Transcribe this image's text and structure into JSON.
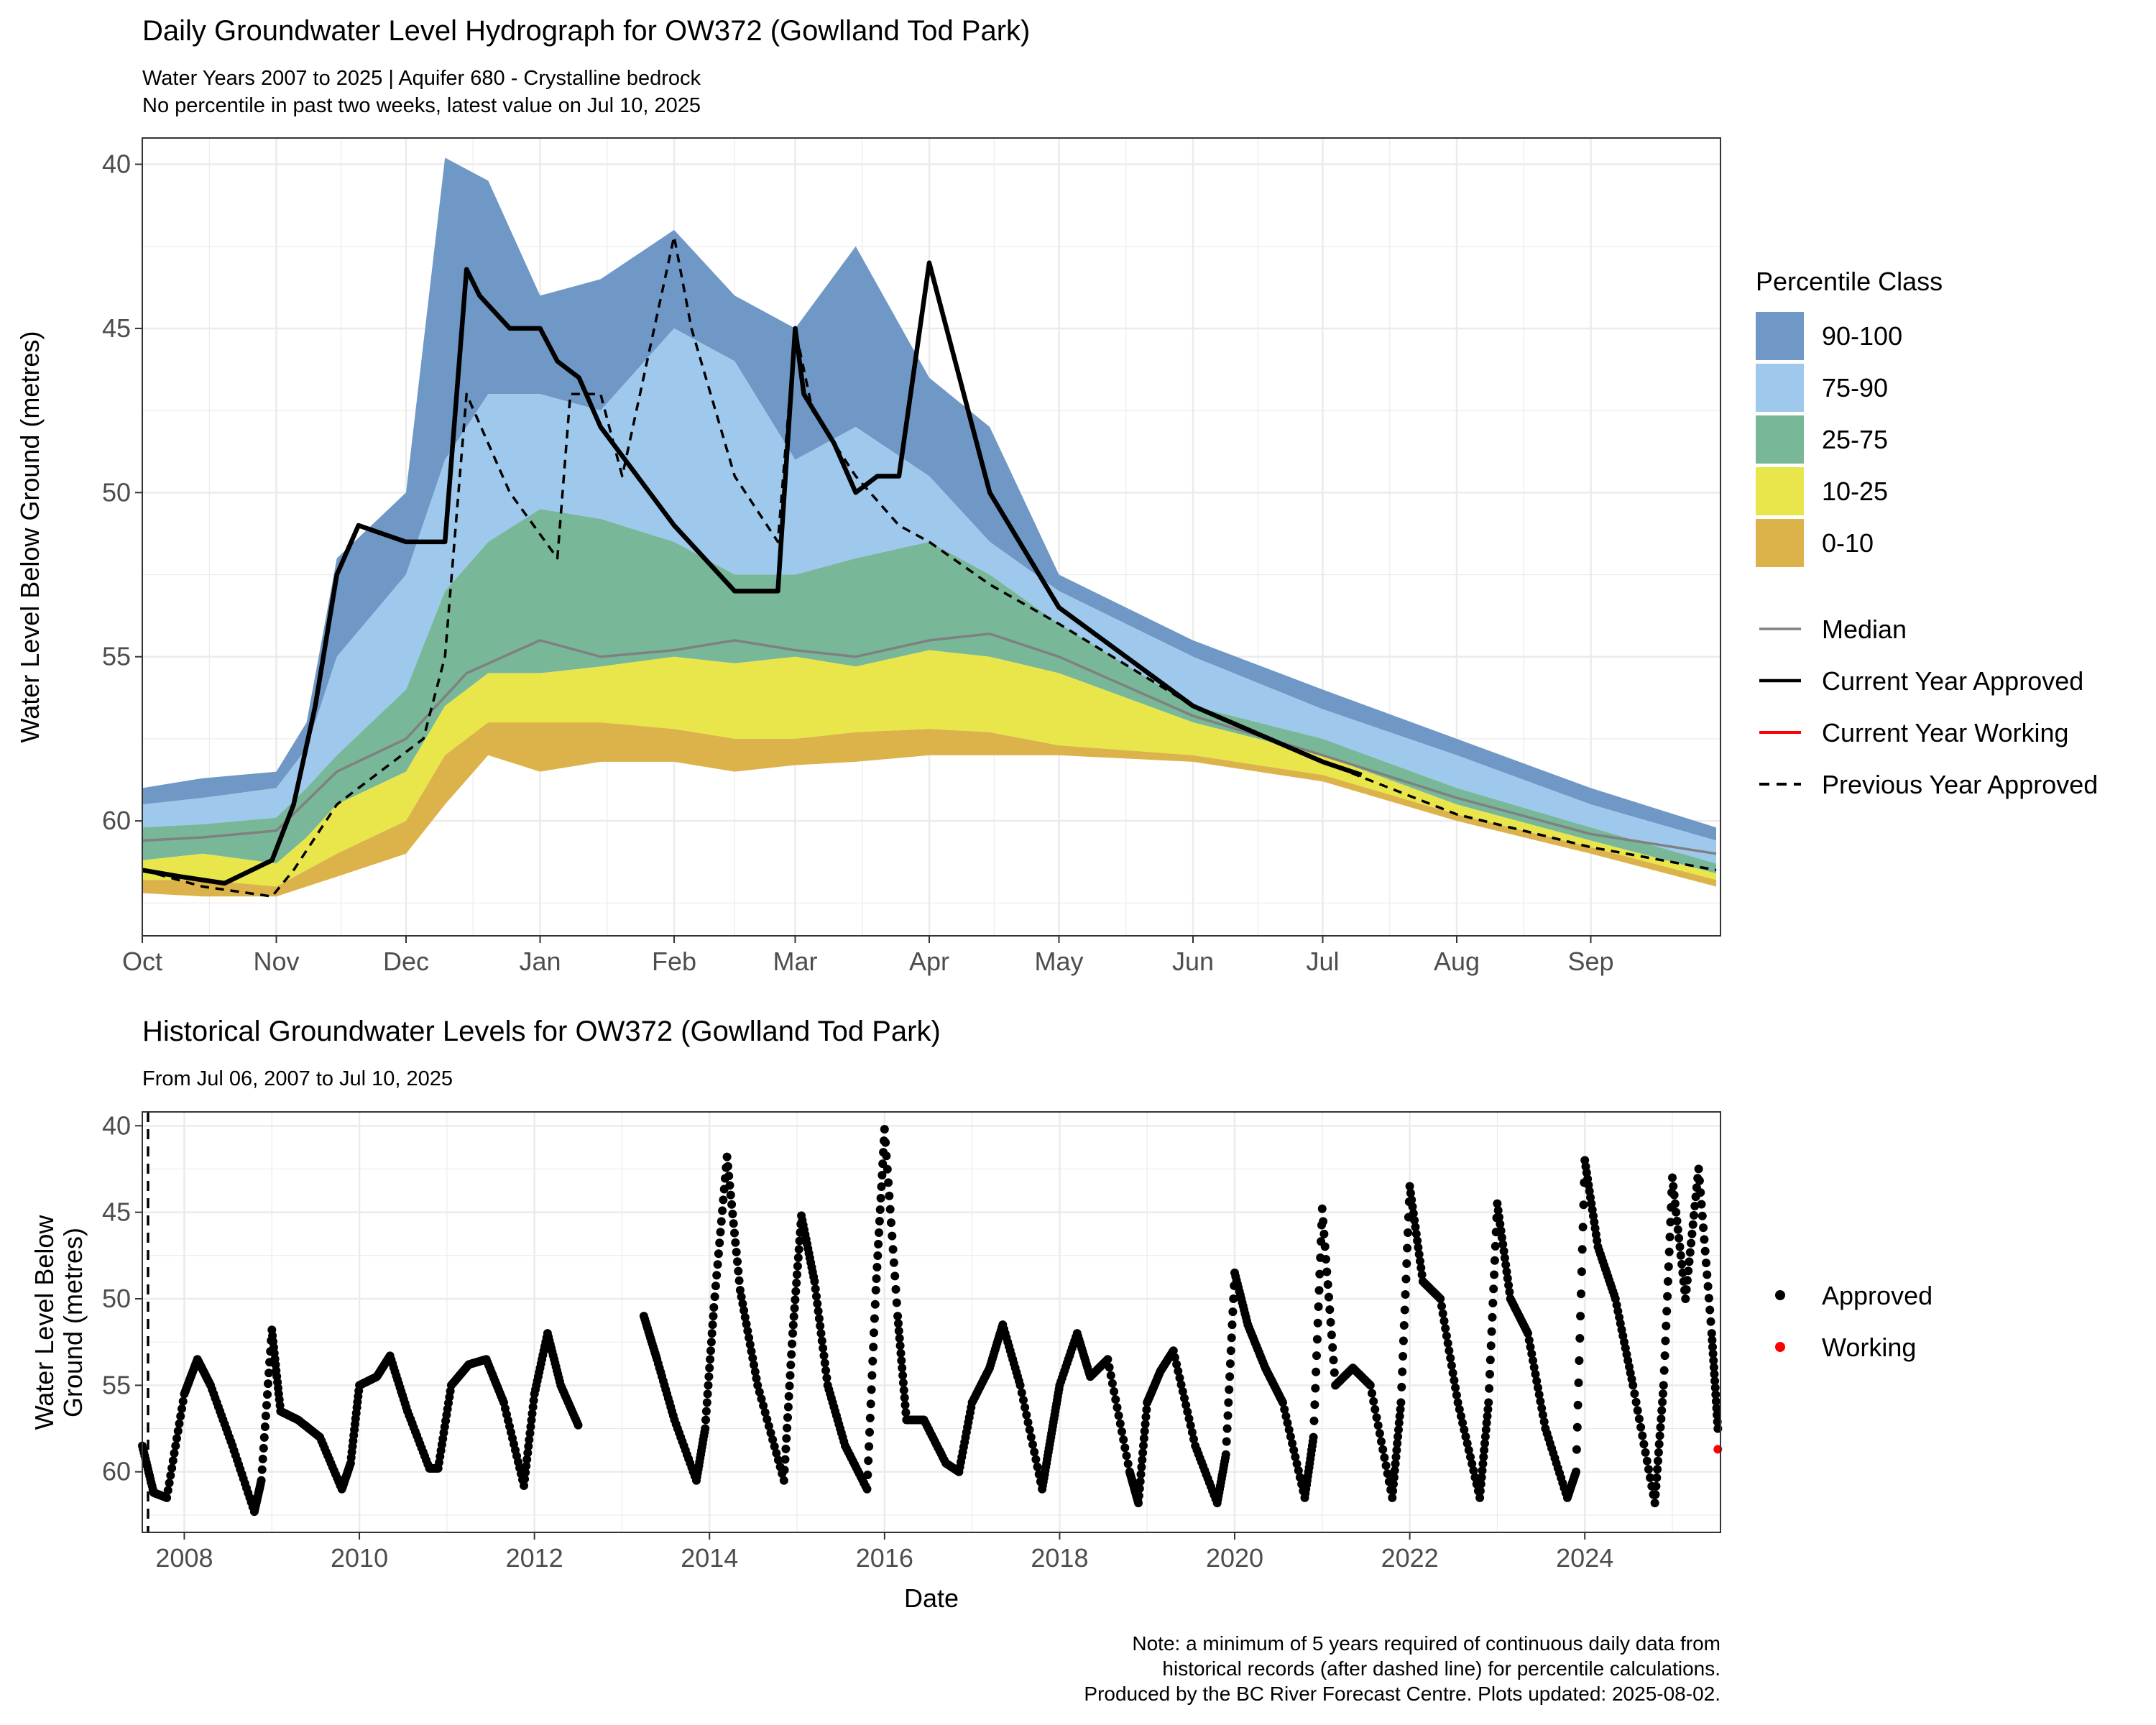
{
  "colors": {
    "p90_100": "#6f98c7",
    "p75_90": "#9fc9ec",
    "p25_75": "#78b899",
    "p10_25": "#e9e64c",
    "p0_10": "#dcb24a",
    "median": "#808080",
    "current_approved": "#000000",
    "current_working": "#ff0000",
    "previous_approved": "#000000",
    "approved_points": "#000000",
    "working_points": "#ff0000",
    "grid": "#ebebeb"
  },
  "titles": {
    "main": "Daily Groundwater Level Hydrograph for OW372 (Gowlland Tod Park)",
    "sub1": "Water Years 2007 to 2025 | Aquifer 680 - Crystalline bedrock",
    "sub2": "No percentile in past two weeks, latest value on Jul 10, 2025",
    "hist": "Historical Groundwater Levels for OW372 (Gowlland Tod Park)",
    "hist_sub": "From Jul 06, 2007 to Jul 10, 2025"
  },
  "legend1": {
    "title": "Percentile Class",
    "classes": [
      "90-100",
      "75-90",
      "25-75",
      "10-25",
      "0-10"
    ],
    "lines": [
      "Median",
      "Current Year Approved",
      "Current Year Working",
      "Previous Year Approved"
    ]
  },
  "legend2": {
    "items": [
      "Approved",
      "Working"
    ]
  },
  "notes": [
    "Note: a minimum of 5 years required of continuous daily data from",
    "historical records (after dashed line) for percentile calculations.",
    "Produced by the BC River Forecast Centre. Plots updated: 2025-08-02."
  ],
  "chart_data": [
    {
      "type": "area",
      "title": "Daily Groundwater Level Hydrograph for OW372 (Gowlland Tod Park)",
      "xlabel": "",
      "ylabel": "Water Level Below Ground (metres)",
      "y_reversed": true,
      "ylim": [
        63.5,
        39.2
      ],
      "x_ticks": [
        "Oct",
        "Nov",
        "Dec",
        "Jan",
        "Feb",
        "Mar",
        "Apr",
        "May",
        "Jun",
        "Jul",
        "Aug",
        "Sep"
      ],
      "y_ticks": [
        40,
        45,
        50,
        55,
        60
      ],
      "grid": true,
      "legend_position": "right",
      "x": [
        "Oct 1",
        "Oct 15",
        "Nov 1",
        "Nov 8",
        "Nov 15",
        "Dec 1",
        "Dec 10",
        "Dec 20",
        "Jan 1",
        "Jan 15",
        "Feb 1",
        "Feb 15",
        "Mar 1",
        "Mar 15",
        "Apr 1",
        "Apr 15",
        "May 1",
        "Jun 1",
        "Jul 1",
        "Aug 1",
        "Sep 1",
        "Sep 30"
      ],
      "bands": [
        {
          "name": "90-100",
          "top": [
            59.0,
            58.7,
            58.5,
            57.0,
            52.0,
            50.0,
            39.8,
            40.5,
            44.0,
            43.5,
            42.0,
            44.0,
            45.0,
            42.5,
            46.5,
            48.0,
            52.5,
            54.5,
            56.0,
            57.5,
            59.0,
            60.2
          ]
        },
        {
          "name": "75-90",
          "top": [
            59.5,
            59.3,
            59.0,
            57.8,
            55.0,
            52.5,
            49.0,
            47.0,
            47.0,
            47.5,
            45.0,
            46.0,
            49.0,
            48.0,
            49.5,
            51.5,
            53.0,
            55.0,
            56.6,
            58.0,
            59.5,
            60.6
          ]
        },
        {
          "name": "25-75",
          "top": [
            60.2,
            60.1,
            59.9,
            59.0,
            58.0,
            56.0,
            53.0,
            51.5,
            50.5,
            50.8,
            51.5,
            52.5,
            52.5,
            52.0,
            51.5,
            52.5,
            54.0,
            56.5,
            57.5,
            59.0,
            60.2,
            61.3
          ]
        },
        {
          "name": "10-25",
          "top": [
            61.2,
            61.0,
            61.3,
            60.5,
            59.5,
            58.5,
            56.5,
            55.5,
            55.5,
            55.3,
            55.0,
            55.2,
            55.0,
            55.3,
            54.8,
            55.0,
            55.5,
            57.0,
            58.0,
            59.5,
            60.6,
            61.6
          ]
        },
        {
          "name": "0-10",
          "top": [
            61.8,
            61.8,
            62.0,
            61.5,
            61.0,
            60.0,
            58.0,
            57.0,
            57.0,
            57.0,
            57.2,
            57.5,
            57.5,
            57.3,
            57.2,
            57.3,
            57.7,
            58.0,
            58.6,
            59.8,
            60.8,
            61.8
          ]
        }
      ],
      "bottom": [
        62.2,
        62.3,
        62.3,
        62.0,
        61.7,
        61.0,
        59.5,
        58.0,
        58.5,
        58.2,
        58.2,
        58.5,
        58.3,
        58.2,
        58.0,
        58.0,
        58.0,
        58.2,
        58.8,
        60.0,
        61.0,
        62.0
      ],
      "series": [
        {
          "name": "Median",
          "x": [
            "Oct 1",
            "Oct 15",
            "Nov 1",
            "Nov 15",
            "Dec 1",
            "Dec 15",
            "Jan 1",
            "Jan 15",
            "Feb 1",
            "Feb 15",
            "Mar 1",
            "Mar 15",
            "Apr 1",
            "Apr 15",
            "May 1",
            "Jun 1",
            "Jul 1",
            "Aug 1",
            "Sep 1",
            "Sep 30"
          ],
          "values": [
            60.6,
            60.5,
            60.3,
            58.5,
            57.5,
            55.5,
            54.5,
            55.0,
            54.8,
            54.5,
            54.8,
            55.0,
            54.5,
            54.3,
            55.0,
            56.8,
            58.0,
            59.3,
            60.4,
            61.0
          ]
        },
        {
          "name": "Current Year Approved",
          "x": [
            "Oct 1",
            "Oct 10",
            "Oct 20",
            "Oct 31",
            "Nov 5",
            "Nov 10",
            "Nov 15",
            "Nov 20",
            "Dec 1",
            "Dec 10",
            "Dec 15",
            "Dec 18",
            "Dec 25",
            "Jan 1",
            "Jan 5",
            "Jan 10",
            "Jan 15",
            "Feb 1",
            "Feb 15",
            "Feb 25",
            "Mar 1",
            "Mar 3",
            "Mar 10",
            "Mar 15",
            "Mar 20",
            "Mar 25",
            "Apr 1",
            "Apr 15",
            "May 1",
            "Jun 1",
            "Jul 1",
            "Jul 10"
          ],
          "values": [
            61.5,
            61.7,
            61.9,
            61.2,
            59.5,
            56.5,
            52.5,
            51.0,
            51.5,
            51.5,
            43.2,
            44.0,
            45.0,
            45.0,
            46.0,
            46.5,
            48.0,
            51.0,
            53.0,
            53.0,
            45.0,
            47.0,
            48.5,
            50.0,
            49.5,
            49.5,
            43.0,
            50.0,
            53.5,
            56.5,
            58.2,
            58.6
          ]
        },
        {
          "name": "Previous Year Approved",
          "x": [
            "Oct 1",
            "Oct 15",
            "Oct 31",
            "Nov 5",
            "Nov 15",
            "Nov 25",
            "Dec 5",
            "Dec 10",
            "Dec 15",
            "Dec 25",
            "Jan 5",
            "Jan 8",
            "Jan 15",
            "Jan 20",
            "Feb 1",
            "Feb 5",
            "Feb 15",
            "Feb 25",
            "Mar 1",
            "Mar 5",
            "Mar 15",
            "Mar 25",
            "Apr 1",
            "Apr 15",
            "May 1",
            "Jun 1",
            "Jul 1",
            "Aug 1",
            "Sep 1",
            "Sep 30"
          ],
          "values": [
            61.5,
            62.0,
            62.3,
            61.5,
            59.5,
            58.5,
            57.5,
            55.0,
            47.0,
            50.0,
            52.0,
            47.0,
            47.0,
            49.5,
            42.2,
            45.0,
            49.5,
            51.5,
            45.0,
            47.5,
            49.5,
            51.0,
            51.5,
            52.8,
            54.0,
            56.5,
            58.2,
            59.8,
            60.8,
            61.5
          ]
        }
      ]
    },
    {
      "type": "scatter",
      "title": "Historical Groundwater Levels for OW372 (Gowlland Tod Park)",
      "xlabel": "Date",
      "ylabel": "Water Level Below Ground (metres)",
      "y_reversed": true,
      "ylim": [
        63.5,
        39.2
      ],
      "x_ticks": [
        "2008",
        "2010",
        "2012",
        "2014",
        "2016",
        "2018",
        "2020",
        "2022",
        "2024"
      ],
      "y_ticks": [
        40,
        45,
        50,
        55,
        60
      ],
      "grid": true,
      "legend_position": "right",
      "series": [
        {
          "name": "Approved",
          "x": [
            2007.52,
            2007.65,
            2007.8,
            2008.0,
            2008.15,
            2008.3,
            2008.55,
            2008.8,
            2008.88,
            2009.0,
            2009.1,
            2009.3,
            2009.55,
            2009.8,
            2009.9,
            2010.0,
            2010.2,
            2010.35,
            2010.55,
            2010.8,
            2010.9,
            2011.05,
            2011.25,
            2011.45,
            2011.65,
            2011.88,
            2012.0,
            2012.15,
            2012.3,
            2012.5,
            2013.25,
            2013.4,
            2013.6,
            2013.85,
            2013.95,
            2014.05,
            2014.2,
            2014.35,
            2014.55,
            2014.85,
            2014.95,
            2015.05,
            2015.2,
            2015.35,
            2015.55,
            2015.8,
            2015.9,
            2016.0,
            2016.15,
            2016.25,
            2016.45,
            2016.7,
            2016.85,
            2017.0,
            2017.2,
            2017.35,
            2017.55,
            2017.8,
            2017.9,
            2018.0,
            2018.2,
            2018.35,
            2018.55,
            2018.8,
            2018.9,
            2019.0,
            2019.15,
            2019.3,
            2019.55,
            2019.8,
            2019.9,
            2020.0,
            2020.15,
            2020.35,
            2020.55,
            2020.8,
            2020.9,
            2021.0,
            2021.15,
            2021.35,
            2021.55,
            2021.8,
            2021.9,
            2022.0,
            2022.15,
            2022.35,
            2022.55,
            2022.8,
            2022.9,
            2023.0,
            2023.15,
            2023.35,
            2023.55,
            2023.8,
            2023.9,
            2024.0,
            2024.15,
            2024.35,
            2024.55,
            2024.8,
            2024.9,
            2025.0,
            2025.15,
            2025.3,
            2025.45,
            2025.52
          ],
          "values": [
            58.5,
            61.2,
            61.5,
            55.5,
            53.5,
            55.0,
            58.5,
            62.3,
            60.5,
            51.8,
            56.5,
            57.0,
            58.0,
            61.0,
            59.5,
            55.0,
            54.5,
            53.3,
            56.5,
            59.8,
            59.8,
            55.0,
            53.8,
            53.5,
            56.0,
            60.8,
            55.5,
            52.0,
            55.0,
            57.3,
            51.0,
            53.5,
            57.0,
            60.5,
            57.5,
            50.5,
            41.8,
            49.5,
            55.0,
            60.5,
            52.0,
            45.2,
            49.0,
            55.0,
            58.5,
            61.0,
            49.5,
            40.2,
            51.0,
            57.0,
            57.0,
            59.5,
            60.0,
            56.0,
            54.0,
            51.5,
            55.0,
            61.0,
            58.0,
            55.0,
            52.0,
            54.5,
            53.5,
            60.0,
            61.8,
            56.0,
            54.2,
            53.0,
            58.5,
            61.8,
            59.0,
            48.5,
            51.5,
            54.0,
            56.0,
            61.5,
            58.0,
            44.8,
            55.0,
            54.0,
            55.0,
            61.5,
            56.0,
            43.5,
            49.0,
            50.0,
            56.0,
            61.5,
            56.0,
            44.5,
            50.0,
            52.0,
            57.5,
            61.5,
            60.0,
            42.0,
            47.0,
            50.0,
            55.0,
            61.8,
            55.0,
            43.0,
            50.0,
            42.5,
            52.0,
            57.5
          ]
        },
        {
          "name": "Working",
          "x": [
            2025.52
          ],
          "values": [
            58.7
          ]
        }
      ]
    }
  ]
}
